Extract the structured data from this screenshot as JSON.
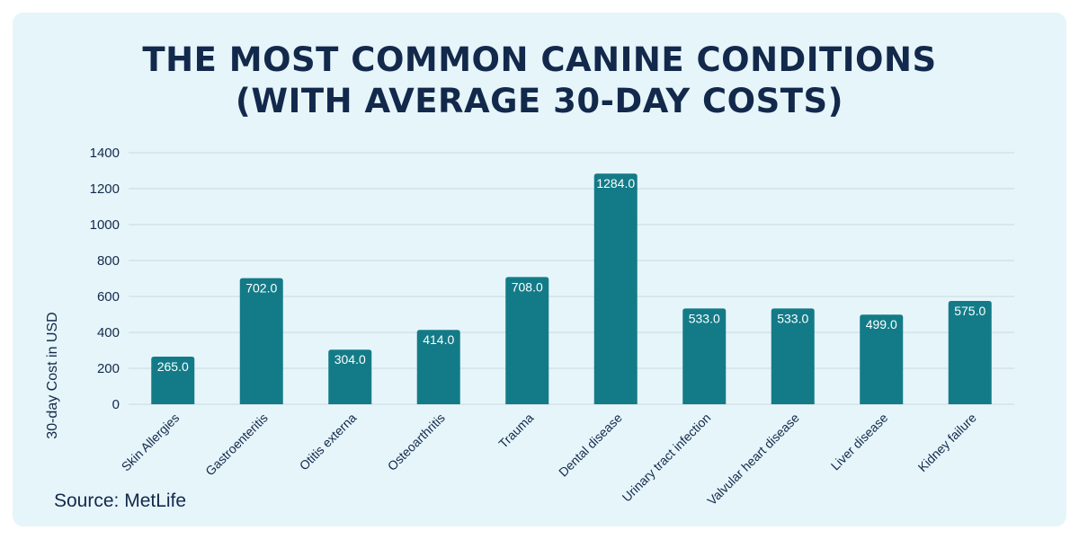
{
  "chart_data": {
    "type": "bar",
    "title_line1": "THE MOST COMMON CANINE CONDITIONS",
    "title_line2": "(WITH AVERAGE 30-DAY COSTS)",
    "xlabel": "",
    "ylabel": "30-day Cost in USD",
    "ylim": [
      0,
      1400
    ],
    "yticks": [
      0,
      200,
      400,
      600,
      800,
      1000,
      1200,
      1400
    ],
    "grid": true,
    "categories": [
      "Skin Allergies",
      "Gastroenteritis",
      "Otitis externa",
      "Osteoarthritis",
      "Trauma",
      "Dental disease",
      "Urinary tract infection",
      "Valvular heart disease",
      "Liver disease",
      "Kidney failure"
    ],
    "values": [
      265,
      702,
      304,
      414,
      708,
      1284,
      533,
      533,
      499,
      575
    ],
    "data_labels": [
      "265.0",
      "702.0",
      "304.0",
      "414.0",
      "708.0",
      "1284.0",
      "533.0",
      "533.0",
      "499.0",
      "575.0"
    ],
    "bar_color": "#137b87",
    "grid_color": "#c9d9e0"
  },
  "source": "Source: MetLife"
}
